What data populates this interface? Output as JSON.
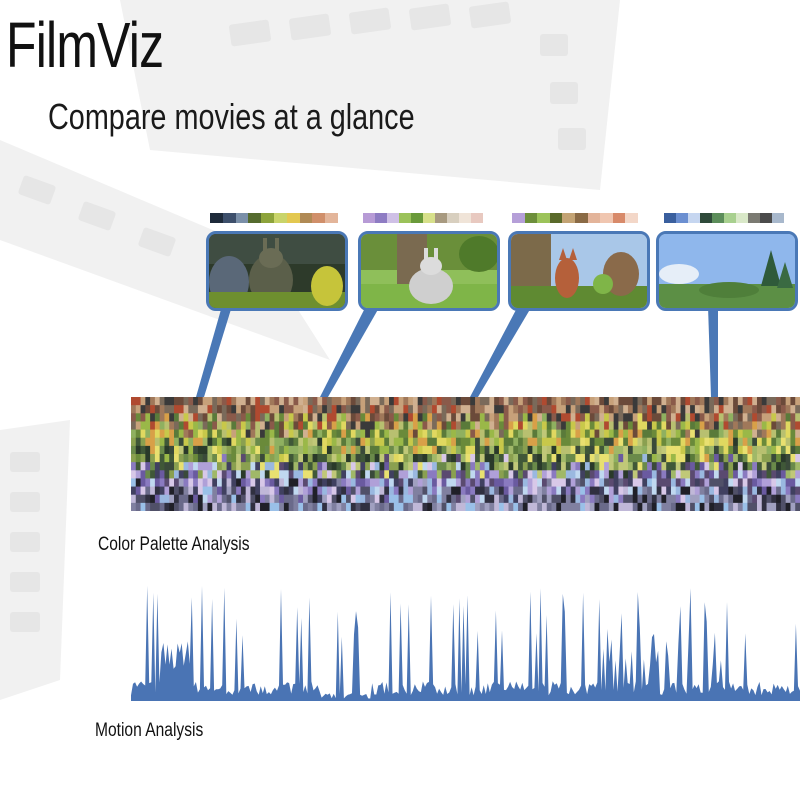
{
  "app": {
    "title": "FilmViz",
    "subtitle": "Compare movies at a glance"
  },
  "keyframes": [
    {
      "scene": "bunny-in-cave",
      "palette": [
        "#1e2a3a",
        "#3d4f6b",
        "#7a8fa8",
        "#556b2f",
        "#8da33b",
        "#c9d46a",
        "#e3c850",
        "#b08a55",
        "#d08f6a",
        "#e3b59a"
      ]
    },
    {
      "scene": "bunny-in-meadow",
      "palette": [
        "#b79bd6",
        "#8e7cc3",
        "#cfc0e6",
        "#9bc25a",
        "#6a9a3a",
        "#d7e08a",
        "#a89a80",
        "#d8cfbf",
        "#f0e4d8",
        "#e8c9c0"
      ]
    },
    {
      "scene": "rodents-in-forest",
      "palette": [
        "#b59fd8",
        "#6d8f3b",
        "#9cc35a",
        "#5a6a2a",
        "#c3a374",
        "#8a6a45",
        "#e3b49a",
        "#f0c6b0",
        "#d88a6a",
        "#f3d7c8"
      ]
    },
    {
      "scene": "forest-landscape",
      "palette": [
        "#3a5f9e",
        "#6b8fd1",
        "#c6d6f0",
        "#2f4a3a",
        "#5c8d5a",
        "#a8d08f",
        "#d9e8c8",
        "#7b7a72",
        "#4b4b4b",
        "#a8b8cc"
      ]
    }
  ],
  "sections": {
    "palette_label": "Color Palette Analysis",
    "motion_label": "Motion Analysis"
  },
  "colors": {
    "accent": "#4a78b6",
    "motion_fill": "#4a74b4"
  }
}
